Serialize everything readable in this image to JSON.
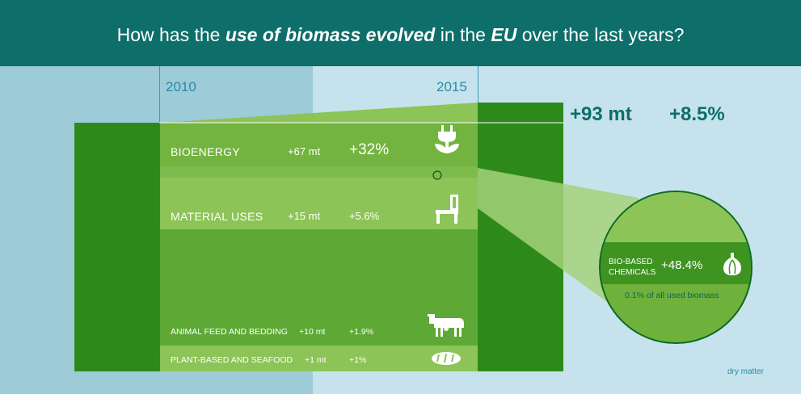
{
  "header": {
    "title_pre": "How has the ",
    "title_em1": "use of biomass evolved",
    "title_mid": " in the ",
    "title_em2": "EU",
    "title_post": " over the last years?"
  },
  "years": {
    "start": "2010",
    "end": "2015"
  },
  "totals": {
    "absolute": "+93 mt",
    "percent": "+8.5%"
  },
  "chart_data": {
    "type": "bar",
    "title": "How has the use of biomass evolved in the EU over the last years?",
    "categories": [
      "BIOENERGY",
      "MATERIAL USES",
      "ANIMAL FEED AND BEDDING",
      "PLANT-BASED AND SEAFOOD"
    ],
    "x": [
      "2010",
      "2015"
    ],
    "series": [
      {
        "name": "change (mt)",
        "values": [
          67,
          15,
          10,
          1
        ]
      },
      {
        "name": "change (%)",
        "values": [
          32,
          5.6,
          1.9,
          1
        ]
      }
    ],
    "total_change_mt": 93,
    "total_change_pct": 8.5,
    "rows": [
      {
        "label": "BIOENERGY",
        "value": "+67 mt",
        "pct": "+32%",
        "icon": "plug-plant-icon"
      },
      {
        "label": "MATERIAL USES",
        "value": "+15 mt",
        "pct": "+5.6%",
        "icon": "chair-icon"
      },
      {
        "label": "ANIMAL FEED AND BEDDING",
        "value": "+10 mt",
        "pct": "+1.9%",
        "icon": "cow-icon"
      },
      {
        "label": "PLANT-BASED AND SEAFOOD",
        "value": "+1 mt",
        "pct": "+1%",
        "icon": "bread-icon"
      }
    ],
    "callout": {
      "label_line1": "BIO-BASED",
      "label_line2": "CHEMICALS",
      "pct": "+48.4%",
      "share_pct": "0.1%",
      "share_text": " of all used biomass",
      "icon": "garlic-icon"
    },
    "unit_note": "dry matter"
  },
  "colors": {
    "header": "#0d6e6a",
    "dark_green": "#2d8a1a",
    "mid_green": "#5ea935",
    "light_green": "#8cc457",
    "bg_light": "#c6e3ed",
    "bg_mid": "#9dcbd7"
  }
}
